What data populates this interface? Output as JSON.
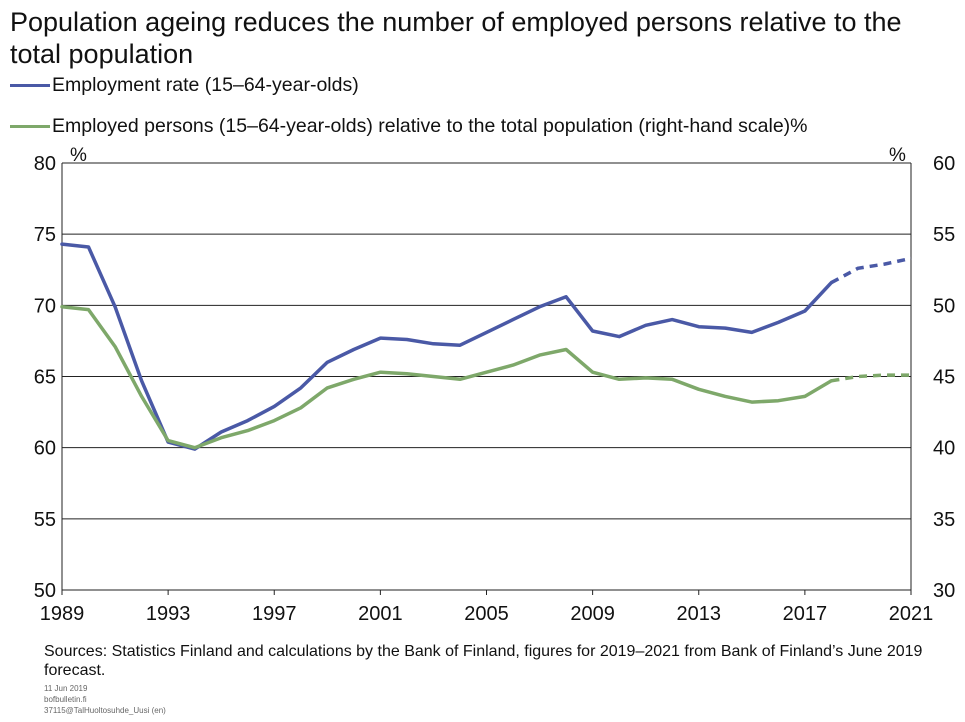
{
  "title": "Population ageing reduces the number of employed persons relative to the total population",
  "legend": [
    {
      "label": "Employment rate (15–64-year-olds)",
      "color": "#4a59a6"
    },
    {
      "label": "Employed persons (15–64-year-olds) relative to the total population (right-hand scale)",
      "color": "#7ea86a"
    }
  ],
  "left_unit": "%",
  "right_unit": "%",
  "source": "Sources: Statistics Finland and calculations by the Bank of Finland, figures for 2019–2021 from Bank of Finland’s June 2019 forecast.",
  "footer": [
    "11 Jun 2019",
    "bofbulletin.fi",
    "37115@TalHuoltosuhde_Uusi (en)"
  ],
  "chart_data": {
    "type": "line",
    "x": [
      1989,
      1990,
      1991,
      1992,
      1993,
      1994,
      1995,
      1996,
      1997,
      1998,
      1999,
      2000,
      2001,
      2002,
      2003,
      2004,
      2005,
      2006,
      2007,
      2008,
      2009,
      2010,
      2011,
      2012,
      2013,
      2014,
      2015,
      2016,
      2017,
      2018,
      2019,
      2020,
      2021
    ],
    "xticks": [
      "1989",
      "1993",
      "1997",
      "2001",
      "2005",
      "2009",
      "2013",
      "2017",
      "2021"
    ],
    "xlim": [
      1989,
      2021
    ],
    "ylim_left": [
      50,
      80
    ],
    "yticks_left": [
      "50",
      "55",
      "60",
      "65",
      "70",
      "75",
      "80"
    ],
    "ylim_right": [
      30,
      60
    ],
    "yticks_right": [
      "30",
      "35",
      "40",
      "45",
      "50",
      "55",
      "60"
    ],
    "series": [
      {
        "name": "Employment rate (15–64-year-olds)",
        "axis": "left",
        "color": "#4a59a6",
        "values": [
          74.3,
          74.1,
          69.9,
          64.7,
          60.4,
          59.9,
          61.1,
          61.9,
          62.9,
          64.2,
          66.0,
          66.9,
          67.7,
          67.6,
          67.3,
          67.2,
          68.1,
          69.0,
          69.9,
          70.6,
          68.2,
          67.8,
          68.6,
          69.0,
          68.5,
          68.4,
          68.1,
          68.8,
          69.6,
          71.6,
          72.6,
          72.9,
          73.3
        ],
        "forecast_from": 2018
      },
      {
        "name": "Employed persons (15–64-year-olds) relative to the total population (right-hand scale)",
        "axis": "right",
        "color": "#7ea86a",
        "values": [
          49.9,
          49.7,
          47.1,
          43.6,
          40.5,
          40.0,
          40.7,
          41.2,
          41.9,
          42.8,
          44.2,
          44.8,
          45.3,
          45.2,
          45.0,
          44.8,
          45.3,
          45.8,
          46.5,
          46.9,
          45.3,
          44.8,
          44.9,
          44.8,
          44.1,
          43.6,
          43.2,
          43.3,
          43.6,
          44.7,
          45.0,
          45.1,
          45.1
        ],
        "forecast_from": 2018
      }
    ],
    "grid": "horizontal",
    "legend_position": "top-left"
  }
}
